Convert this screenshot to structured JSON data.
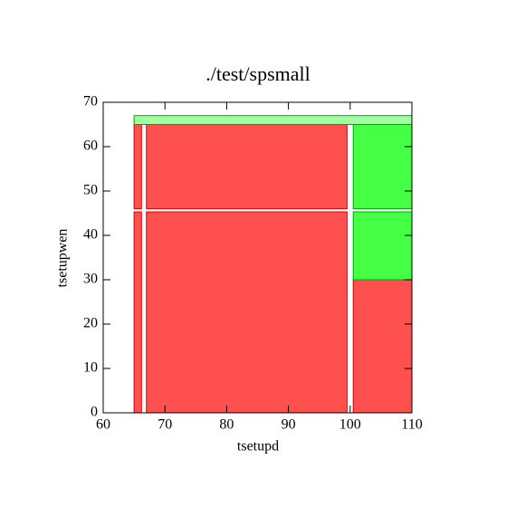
{
  "chart_data": {
    "type": "region",
    "title": "./test/spsmall",
    "x_label": "tsetupd",
    "y_label": "tsetupwen",
    "xlim": [
      60,
      110
    ],
    "xticks": [
      60,
      70,
      80,
      90,
      100,
      110
    ],
    "ylim": [
      0,
      70
    ],
    "yticks": [
      0,
      10,
      20,
      30,
      40,
      50,
      60,
      70
    ],
    "regions": [
      {
        "color": "#ff5050",
        "x": [
          65,
          66.2
        ],
        "y": [
          0,
          45.3
        ]
      },
      {
        "color": "#ff5050",
        "x": [
          65,
          66.2
        ],
        "y": [
          46,
          65
        ]
      },
      {
        "color": "#ff5050",
        "x": [
          67,
          99.5
        ],
        "y": [
          0,
          45.3
        ]
      },
      {
        "color": "#ff5050",
        "x": [
          67,
          99.5
        ],
        "y": [
          46,
          65
        ]
      },
      {
        "color": "#ff5050",
        "x": [
          100.5,
          110
        ],
        "y": [
          0,
          30
        ]
      },
      {
        "color": "#44ff44",
        "x": [
          100.5,
          110
        ],
        "y": [
          30,
          45.3
        ]
      },
      {
        "color": "#44ff44",
        "x": [
          100.5,
          110
        ],
        "y": [
          46,
          65
        ]
      },
      {
        "color": "#a0ffa0",
        "x": [
          65,
          110
        ],
        "y": [
          65,
          67
        ]
      }
    ]
  }
}
